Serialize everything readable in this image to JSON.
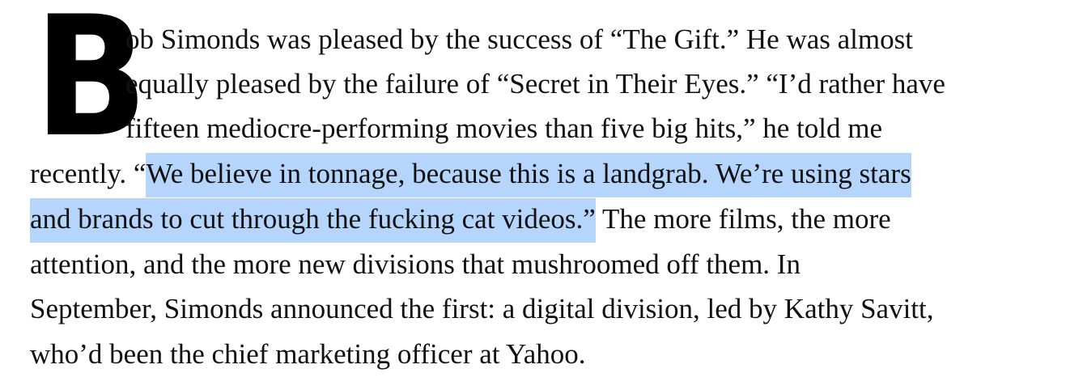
{
  "article": {
    "drop_cap": "B",
    "lines": [
      "ob Simonds was pleased by the success of “The Gift.” He was almost",
      "equally pleased by the failure of “Secret in Their Eyes.” “I’d rather have",
      "fifteen mediocre-performing movies than five big hits,” he told me"
    ],
    "line4_before": "recently. “",
    "line4_highlight": "We believe in tonnage, because this is a landgrab. We’re using stars",
    "line5_highlight": "and brands to cut through the fucking cat videos.”",
    "line5_after": " The more films, the more",
    "lines_after": [
      "attention, and the more new divisions that mushroomed off them. In",
      "September, Simonds announced the first: a digital division, led by Kathy Savitt,",
      "who’d been the chief marketing officer at Yahoo."
    ]
  },
  "colors": {
    "text": "#111111",
    "selection_highlight": "#b5d5fd"
  }
}
